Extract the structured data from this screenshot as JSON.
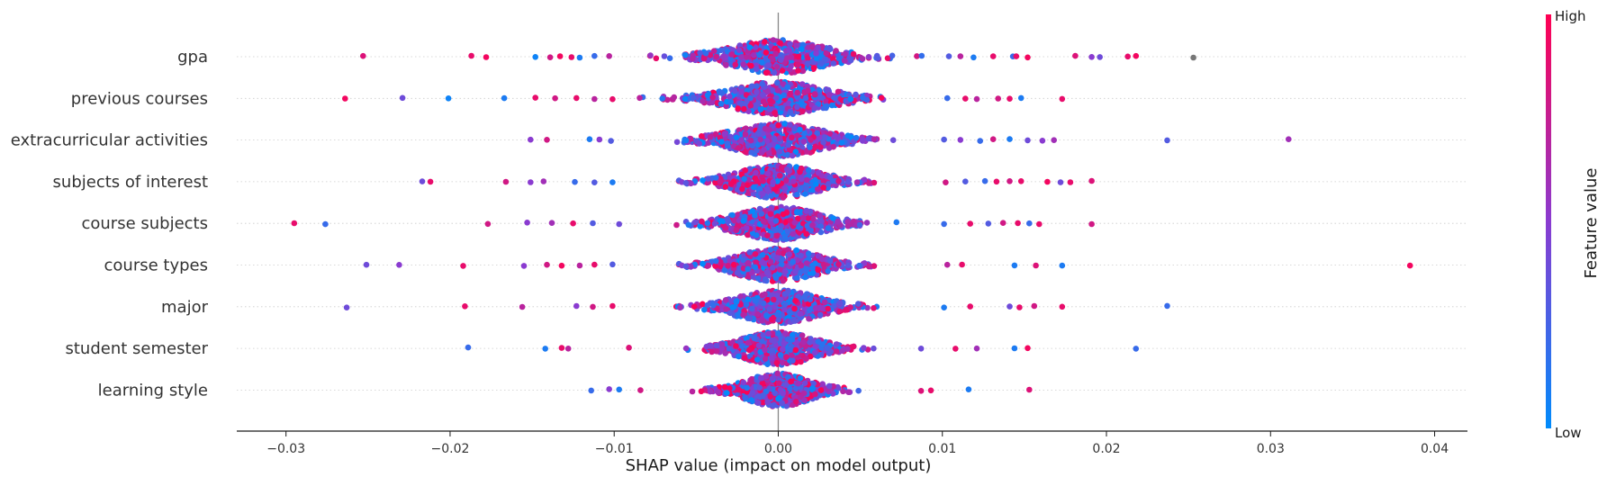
{
  "chart_data": {
    "type": "scatter",
    "subtype": "shap-beeswarm",
    "title": "",
    "xlabel": "SHAP value (impact on model output)",
    "ylabel": "",
    "xlim": [
      -0.033,
      0.042
    ],
    "x_ticks": [
      -0.03,
      -0.02,
      -0.01,
      0.0,
      0.01,
      0.02,
      0.03,
      0.04
    ],
    "x_tick_labels": [
      "−0.03",
      "−0.02",
      "−0.01",
      "0.00",
      "0.01",
      "0.02",
      "0.03",
      "0.04"
    ],
    "grid": false,
    "colorbar": {
      "label": "Feature value",
      "high_label": "High",
      "low_label": "Low",
      "high_color": "#ff0052",
      "low_color": "#008bfb",
      "placement": "right"
    },
    "zero_line_color": "#888888",
    "missing_value_color": "#777777",
    "features": [
      {
        "name": "gpa",
        "core_spread": 0.011,
        "outliers": [
          [
            -0.0253,
            0.85
          ],
          [
            -0.0187,
            0.9
          ],
          [
            -0.0178,
            0.95
          ],
          [
            -0.0148,
            0.05
          ],
          [
            -0.0139,
            0.8
          ],
          [
            -0.0133,
            0.95
          ],
          [
            -0.0126,
            0.9
          ],
          [
            -0.0121,
            0.1
          ],
          [
            -0.0112,
            0.2
          ],
          [
            -0.0103,
            0.7
          ],
          [
            0.0104,
            0.3
          ],
          [
            0.0111,
            0.7
          ],
          [
            0.0119,
            0.1
          ],
          [
            0.0131,
            0.9
          ],
          [
            0.0143,
            0.2
          ],
          [
            0.0145,
            0.9
          ],
          [
            0.0152,
            0.95
          ],
          [
            0.0181,
            0.85
          ],
          [
            0.0191,
            0.5
          ],
          [
            0.0196,
            0.4
          ],
          [
            0.0213,
            0.9
          ],
          [
            0.0218,
            0.95
          ],
          [
            0.0253,
            -1
          ]
        ]
      },
      {
        "name": "previous courses",
        "core_spread": 0.011,
        "outliers": [
          [
            -0.0264,
            0.95
          ],
          [
            -0.0229,
            0.4
          ],
          [
            -0.0201,
            0.05
          ],
          [
            -0.0167,
            0.1
          ],
          [
            -0.0148,
            0.9
          ],
          [
            -0.0136,
            0.8
          ],
          [
            -0.0123,
            0.9
          ],
          [
            -0.0112,
            0.7
          ],
          [
            -0.0101,
            0.9
          ],
          [
            0.0103,
            0.2
          ],
          [
            0.0114,
            0.9
          ],
          [
            0.0121,
            0.7
          ],
          [
            0.0134,
            0.8
          ],
          [
            0.0141,
            0.9
          ],
          [
            0.0148,
            0.1
          ],
          [
            0.0173,
            0.9
          ]
        ]
      },
      {
        "name": "extracurricular activities",
        "core_spread": 0.0105,
        "outliers": [
          [
            -0.0151,
            0.5
          ],
          [
            -0.0141,
            0.8
          ],
          [
            -0.0115,
            0.1
          ],
          [
            -0.0109,
            0.5
          ],
          [
            -0.0102,
            0.3
          ],
          [
            0.0101,
            0.3
          ],
          [
            0.0111,
            0.5
          ],
          [
            0.0123,
            0.2
          ],
          [
            0.0131,
            0.8
          ],
          [
            0.0141,
            0.1
          ],
          [
            0.0152,
            0.4
          ],
          [
            0.0161,
            0.5
          ],
          [
            0.0168,
            0.6
          ],
          [
            0.0237,
            0.3
          ],
          [
            0.0311,
            0.6
          ]
        ]
      },
      {
        "name": "subjects of interest",
        "core_spread": 0.0095,
        "outliers": [
          [
            -0.0217,
            0.4
          ],
          [
            -0.0212,
            0.9
          ],
          [
            -0.0166,
            0.8
          ],
          [
            -0.0151,
            0.5
          ],
          [
            -0.0143,
            0.6
          ],
          [
            -0.0124,
            0.2
          ],
          [
            -0.0112,
            0.3
          ],
          [
            -0.0101,
            0.1
          ],
          [
            0.0102,
            0.8
          ],
          [
            0.0114,
            0.3
          ],
          [
            0.0126,
            0.2
          ],
          [
            0.0133,
            0.9
          ],
          [
            0.0141,
            0.8
          ],
          [
            0.0148,
            0.9
          ],
          [
            0.0164,
            0.95
          ],
          [
            0.0172,
            0.4
          ],
          [
            0.0178,
            0.9
          ],
          [
            0.0191,
            0.85
          ]
        ]
      },
      {
        "name": "course subjects",
        "core_spread": 0.0095,
        "outliers": [
          [
            -0.0295,
            0.9
          ],
          [
            -0.0276,
            0.2
          ],
          [
            -0.0177,
            0.8
          ],
          [
            -0.0153,
            0.5
          ],
          [
            -0.0138,
            0.6
          ],
          [
            -0.0125,
            0.9
          ],
          [
            -0.0113,
            0.3
          ],
          [
            -0.0097,
            0.4
          ],
          [
            0.0101,
            0.2
          ],
          [
            0.0117,
            0.9
          ],
          [
            0.0128,
            0.3
          ],
          [
            0.0137,
            0.8
          ],
          [
            0.0146,
            0.9
          ],
          [
            0.0153,
            0.2
          ],
          [
            0.0159,
            0.9
          ],
          [
            0.0191,
            0.8
          ]
        ]
      },
      {
        "name": "course types",
        "core_spread": 0.0095,
        "outliers": [
          [
            -0.0251,
            0.4
          ],
          [
            -0.0231,
            0.5
          ],
          [
            -0.0192,
            0.9
          ],
          [
            -0.0155,
            0.5
          ],
          [
            -0.0141,
            0.8
          ],
          [
            -0.0132,
            0.95
          ],
          [
            -0.0121,
            0.7
          ],
          [
            -0.0112,
            0.9
          ],
          [
            -0.0101,
            0.3
          ],
          [
            0.0103,
            0.7
          ],
          [
            0.0112,
            0.9
          ],
          [
            0.0144,
            0.1
          ],
          [
            0.0157,
            0.85
          ],
          [
            0.0173,
            0.1
          ],
          [
            0.0385,
            0.95
          ]
        ]
      },
      {
        "name": "major",
        "core_spread": 0.0095,
        "outliers": [
          [
            -0.0263,
            0.4
          ],
          [
            -0.0191,
            0.9
          ],
          [
            -0.0156,
            0.7
          ],
          [
            -0.0123,
            0.5
          ],
          [
            -0.0113,
            0.8
          ],
          [
            -0.0101,
            0.9
          ],
          [
            0.0101,
            0.1
          ],
          [
            0.0117,
            0.9
          ],
          [
            0.0141,
            0.4
          ],
          [
            0.0147,
            0.9
          ],
          [
            0.0156,
            0.8
          ],
          [
            0.0173,
            0.9
          ],
          [
            0.0237,
            0.2
          ]
        ]
      },
      {
        "name": "student semester",
        "core_spread": 0.0085,
        "outliers": [
          [
            -0.0189,
            0.2
          ],
          [
            -0.0142,
            0.1
          ],
          [
            -0.0132,
            0.9
          ],
          [
            -0.0128,
            0.7
          ],
          [
            -0.0091,
            0.85
          ],
          [
            0.0087,
            0.4
          ],
          [
            0.0108,
            0.9
          ],
          [
            0.0121,
            0.6
          ],
          [
            0.0144,
            0.1
          ],
          [
            0.0152,
            0.95
          ],
          [
            0.0218,
            0.2
          ]
        ]
      },
      {
        "name": "learning style",
        "core_spread": 0.0075,
        "outliers": [
          [
            -0.0114,
            0.2
          ],
          [
            -0.0103,
            0.5
          ],
          [
            -0.0097,
            0.1
          ],
          [
            -0.0084,
            0.8
          ],
          [
            0.0087,
            0.85
          ],
          [
            0.0093,
            0.9
          ],
          [
            0.0116,
            0.1
          ],
          [
            0.0153,
            0.85
          ]
        ]
      }
    ]
  }
}
